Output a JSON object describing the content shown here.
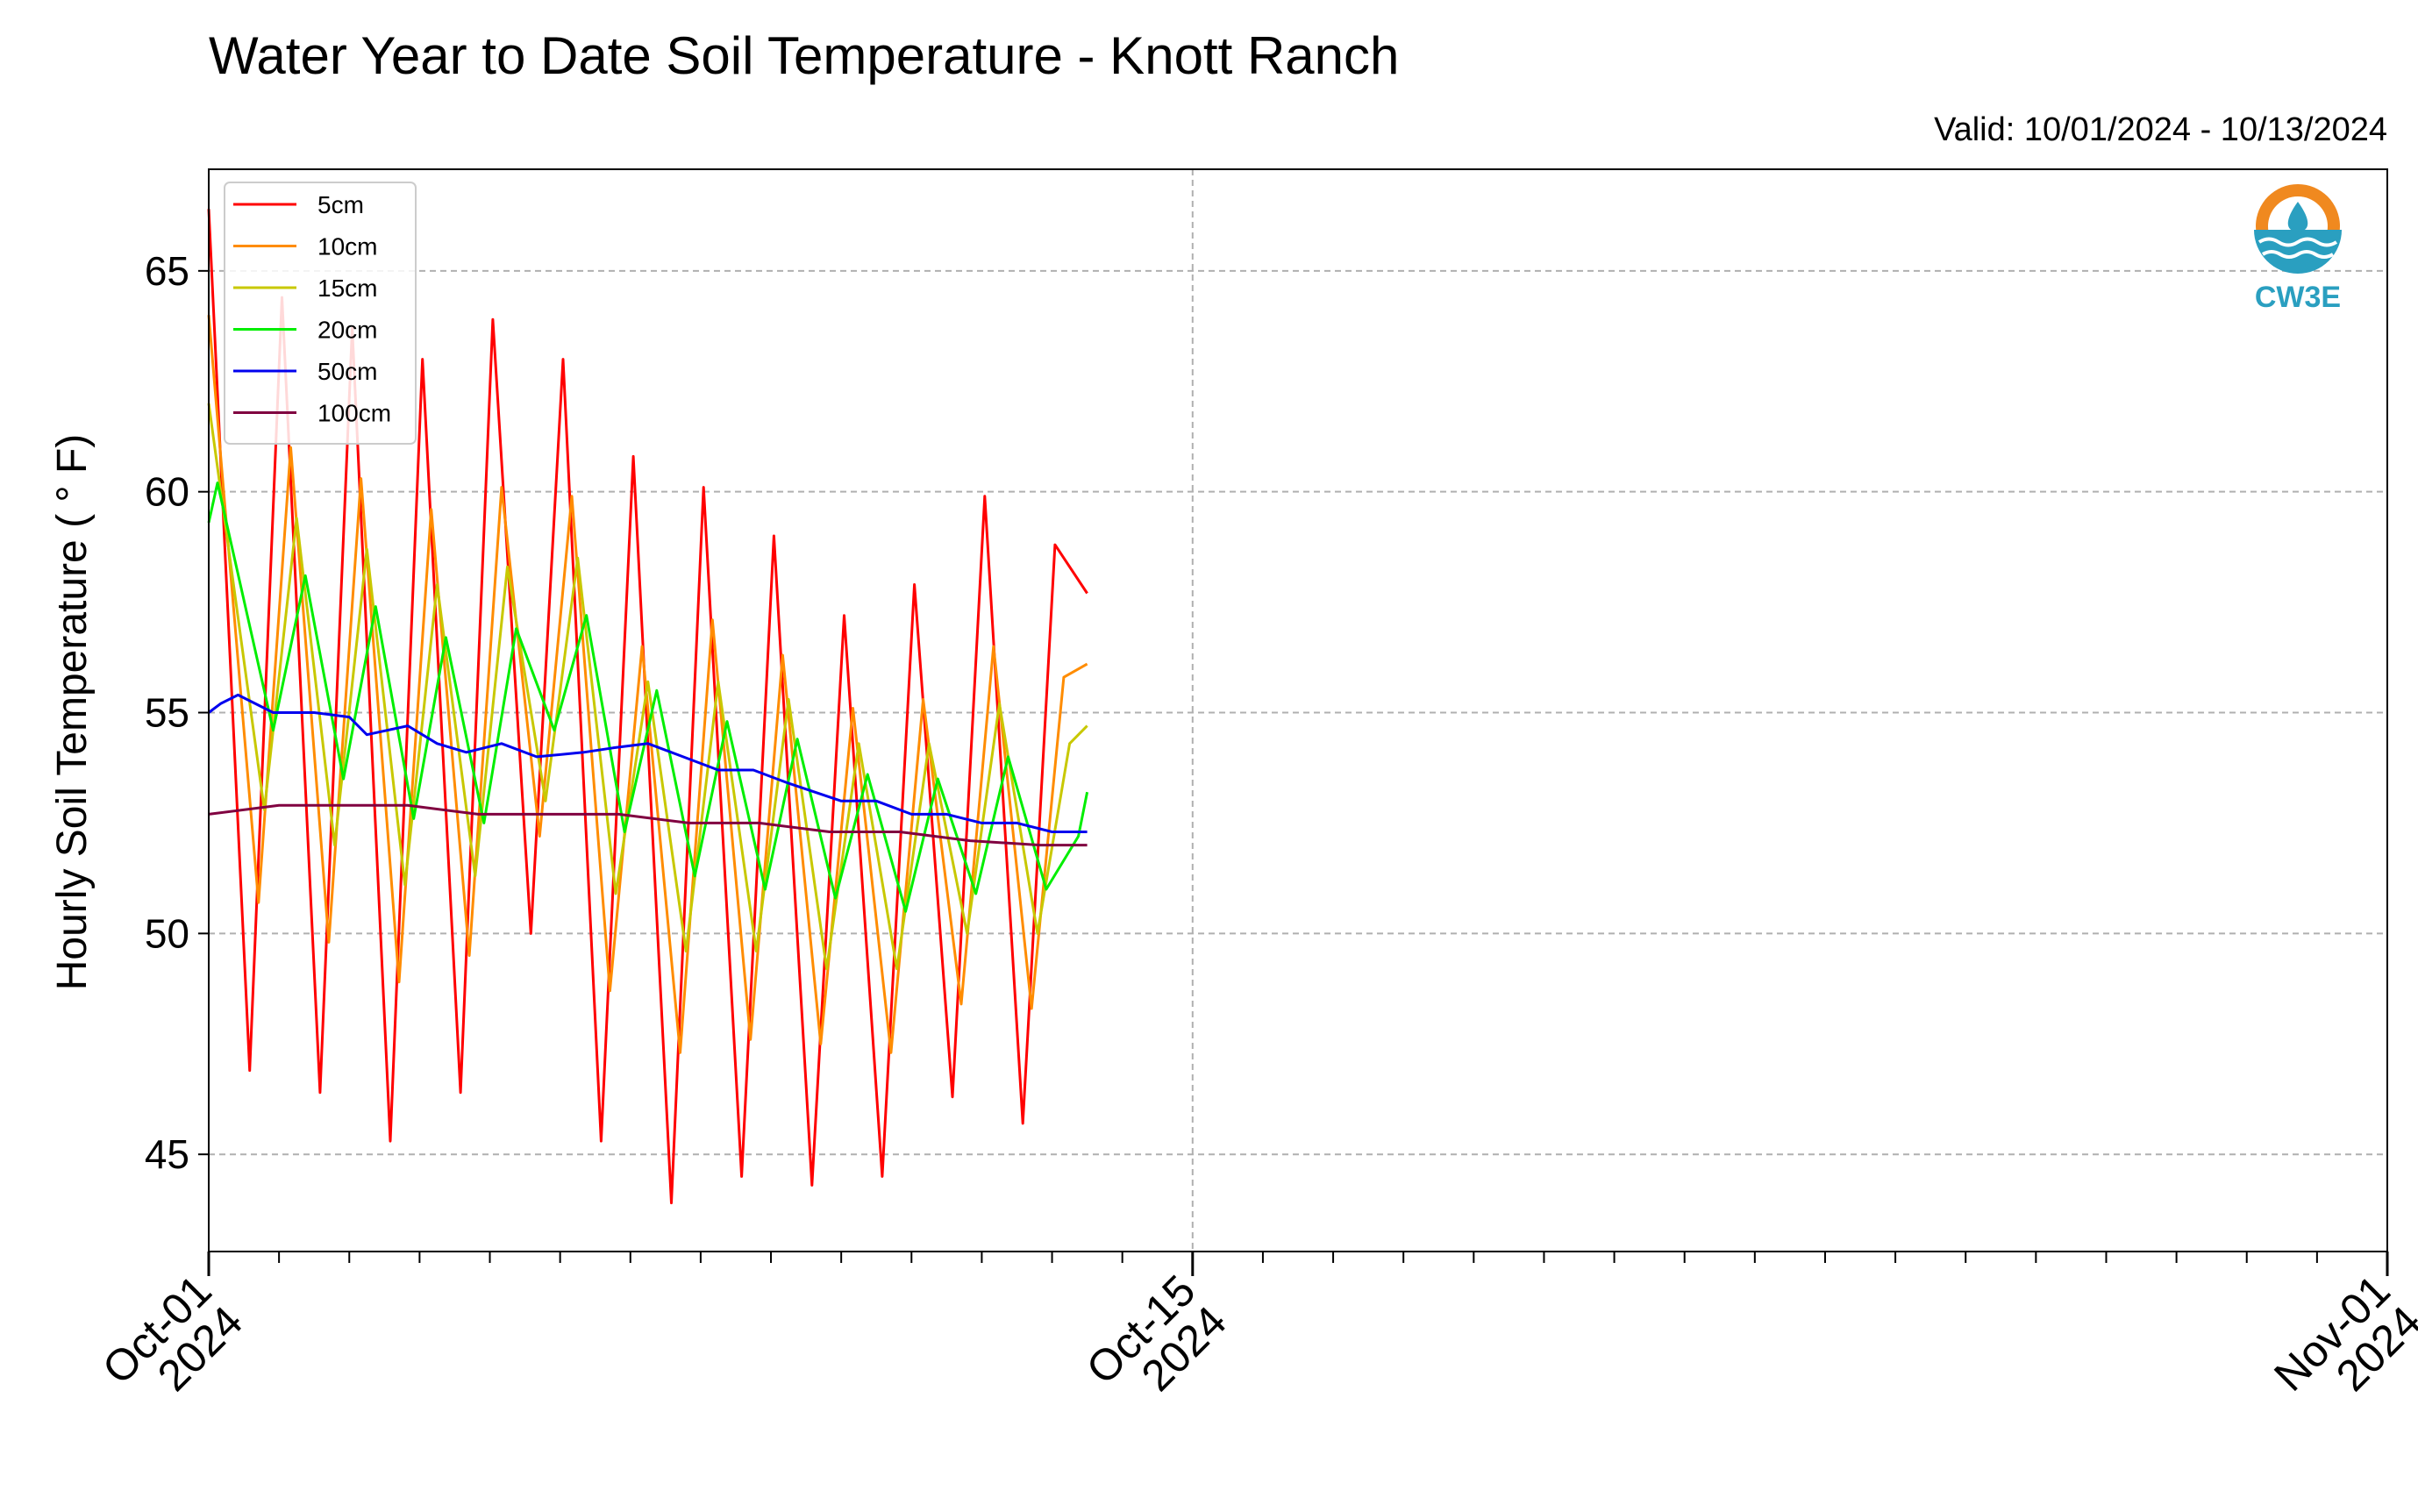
{
  "chart_data": {
    "type": "line",
    "title": "Water Year to Date Soil Temperature - Knott Ranch",
    "subtitle": "Valid: 10/01/2024 - 10/13/2024",
    "ylabel": "Hourly Soil Temperature ( $^\\circ$F)",
    "ylabel_display": "Hourly Soil Temperature ( ° F)",
    "xlabel": "",
    "ylim": [
      42.8,
      67.3
    ],
    "xlim": [
      "2024-10-01",
      "2024-11-01"
    ],
    "yticks": [
      45,
      50,
      55,
      60,
      65
    ],
    "xticks": [
      {
        "date": "2024-10-01",
        "label": [
          "Oct-01",
          "2024"
        ]
      },
      {
        "date": "2024-10-15",
        "label": [
          "Oct-15",
          "2024"
        ]
      },
      {
        "date": "2024-11-01",
        "label": [
          "Nov-01",
          "2024"
        ]
      }
    ],
    "grid": true,
    "legend_position": "top-left",
    "logo": {
      "text": "CW3E",
      "color": "#2a9fc0",
      "accent": "#f0891f"
    },
    "series": [
      {
        "name": "5cm",
        "color": "#ff0000",
        "x": [
          "2024-10-01T00:00",
          "2024-10-01T14:00",
          "2024-10-02T01:00",
          "2024-10-02T14:00",
          "2024-10-03T01:00",
          "2024-10-03T14:00",
          "2024-10-04T01:00",
          "2024-10-04T14:00",
          "2024-10-05T01:00",
          "2024-10-05T14:00",
          "2024-10-06T01:00",
          "2024-10-06T14:00",
          "2024-10-07T01:00",
          "2024-10-07T14:00",
          "2024-10-08T01:00",
          "2024-10-08T14:00",
          "2024-10-09T01:00",
          "2024-10-09T14:00",
          "2024-10-10T01:00",
          "2024-10-10T14:00",
          "2024-10-11T01:00",
          "2024-10-11T14:00",
          "2024-10-12T01:00",
          "2024-10-12T14:00",
          "2024-10-13T01:00",
          "2024-10-13T12:00"
        ],
        "y": [
          66.4,
          46.9,
          64.4,
          46.4,
          63.7,
          45.3,
          63.0,
          46.4,
          63.9,
          50.0,
          63.0,
          45.3,
          60.8,
          43.9,
          60.1,
          44.5,
          59.0,
          44.3,
          57.2,
          44.5,
          57.9,
          46.3,
          59.9,
          45.7,
          58.8,
          57.7
        ]
      },
      {
        "name": "10cm",
        "color": "#ff8c00",
        "x": [
          "2024-10-01T00:00",
          "2024-10-01T17:00",
          "2024-10-02T04:00",
          "2024-10-02T17:00",
          "2024-10-03T04:00",
          "2024-10-03T17:00",
          "2024-10-04T04:00",
          "2024-10-04T17:00",
          "2024-10-05T04:00",
          "2024-10-05T17:00",
          "2024-10-06T04:00",
          "2024-10-06T17:00",
          "2024-10-07T04:00",
          "2024-10-07T17:00",
          "2024-10-08T04:00",
          "2024-10-08T17:00",
          "2024-10-09T04:00",
          "2024-10-09T17:00",
          "2024-10-10T04:00",
          "2024-10-10T17:00",
          "2024-10-11T04:00",
          "2024-10-11T17:00",
          "2024-10-12T04:00",
          "2024-10-12T17:00",
          "2024-10-13T04:00",
          "2024-10-13T12:00"
        ],
        "y": [
          64.0,
          50.7,
          61.0,
          49.8,
          60.3,
          48.9,
          59.6,
          49.5,
          60.1,
          52.2,
          59.9,
          48.7,
          56.5,
          47.3,
          57.1,
          47.6,
          56.3,
          47.5,
          55.1,
          47.3,
          55.3,
          48.4,
          56.5,
          48.3,
          55.8,
          56.1
        ]
      },
      {
        "name": "15cm",
        "color": "#c8c800",
        "x": [
          "2024-10-01T00:00",
          "2024-10-01T19:00",
          "2024-10-02T06:00",
          "2024-10-02T19:00",
          "2024-10-03T06:00",
          "2024-10-03T19:00",
          "2024-10-04T06:00",
          "2024-10-04T19:00",
          "2024-10-05T06:00",
          "2024-10-05T19:00",
          "2024-10-06T06:00",
          "2024-10-06T19:00",
          "2024-10-07T06:00",
          "2024-10-07T19:00",
          "2024-10-08T06:00",
          "2024-10-08T19:00",
          "2024-10-09T06:00",
          "2024-10-09T19:00",
          "2024-10-10T06:00",
          "2024-10-10T19:00",
          "2024-10-11T06:00",
          "2024-10-11T19:00",
          "2024-10-12T06:00",
          "2024-10-12T19:00",
          "2024-10-13T06:00",
          "2024-10-13T12:00"
        ],
        "y": [
          62.0,
          52.8,
          59.4,
          52.0,
          58.7,
          51.1,
          57.9,
          51.3,
          58.3,
          53.0,
          58.5,
          50.9,
          55.7,
          49.6,
          55.7,
          49.6,
          55.3,
          49.2,
          54.3,
          49.2,
          54.3,
          50.0,
          55.2,
          50.0,
          54.3,
          54.7
        ]
      },
      {
        "name": "20cm",
        "color": "#00ee00",
        "x": [
          "2024-10-01T00:00",
          "2024-10-01T03:00",
          "2024-10-01T22:00",
          "2024-10-02T09:00",
          "2024-10-02T22:00",
          "2024-10-03T09:00",
          "2024-10-03T22:00",
          "2024-10-04T09:00",
          "2024-10-04T22:00",
          "2024-10-05T09:00",
          "2024-10-05T22:00",
          "2024-10-06T09:00",
          "2024-10-06T22:00",
          "2024-10-07T09:00",
          "2024-10-07T22:00",
          "2024-10-08T09:00",
          "2024-10-08T22:00",
          "2024-10-09T09:00",
          "2024-10-09T22:00",
          "2024-10-10T09:00",
          "2024-10-10T22:00",
          "2024-10-11T09:00",
          "2024-10-11T22:00",
          "2024-10-12T09:00",
          "2024-10-12T22:00",
          "2024-10-13T09:00",
          "2024-10-13T12:00"
        ],
        "y": [
          59.3,
          60.2,
          54.6,
          58.1,
          53.5,
          57.4,
          52.6,
          56.7,
          52.5,
          56.9,
          54.6,
          57.2,
          52.3,
          55.5,
          51.3,
          54.8,
          51.0,
          54.4,
          50.8,
          53.6,
          50.5,
          53.5,
          50.9,
          54.0,
          51.0,
          52.2,
          53.2
        ]
      },
      {
        "name": "50cm",
        "color": "#0000ee",
        "x": [
          "2024-10-01T00:00",
          "2024-10-01T04:00",
          "2024-10-01T10:00",
          "2024-10-01T22:00",
          "2024-10-02T12:00",
          "2024-10-03T00:00",
          "2024-10-03T06:00",
          "2024-10-03T20:00",
          "2024-10-04T06:00",
          "2024-10-04T16:00",
          "2024-10-05T04:00",
          "2024-10-05T16:00",
          "2024-10-06T08:00",
          "2024-10-06T18:00",
          "2024-10-07T06:00",
          "2024-10-07T18:00",
          "2024-10-08T06:00",
          "2024-10-08T18:00",
          "2024-10-09T06:00",
          "2024-10-10T00:00",
          "2024-10-10T12:00",
          "2024-10-11T00:00",
          "2024-10-11T12:00",
          "2024-10-12T00:00",
          "2024-10-12T12:00",
          "2024-10-13T00:00",
          "2024-10-13T12:00"
        ],
        "y": [
          55.0,
          55.2,
          55.4,
          55.0,
          55.0,
          54.9,
          54.5,
          54.7,
          54.3,
          54.1,
          54.3,
          54.0,
          54.1,
          54.2,
          54.3,
          54.0,
          53.7,
          53.7,
          53.4,
          53.0,
          53.0,
          52.7,
          52.7,
          52.5,
          52.5,
          52.3,
          52.3
        ]
      },
      {
        "name": "100cm",
        "color": "#800040",
        "x": [
          "2024-10-01T00:00",
          "2024-10-02T00:00",
          "2024-10-02T20:00",
          "2024-10-03T20:00",
          "2024-10-04T20:00",
          "2024-10-05T20:00",
          "2024-10-06T20:00",
          "2024-10-07T20:00",
          "2024-10-08T20:00",
          "2024-10-09T20:00",
          "2024-10-10T20:00",
          "2024-10-11T20:00",
          "2024-10-12T20:00",
          "2024-10-13T12:00"
        ],
        "y": [
          52.7,
          52.9,
          52.9,
          52.9,
          52.7,
          52.7,
          52.7,
          52.5,
          52.5,
          52.3,
          52.3,
          52.1,
          52.0,
          52.0
        ]
      }
    ]
  }
}
